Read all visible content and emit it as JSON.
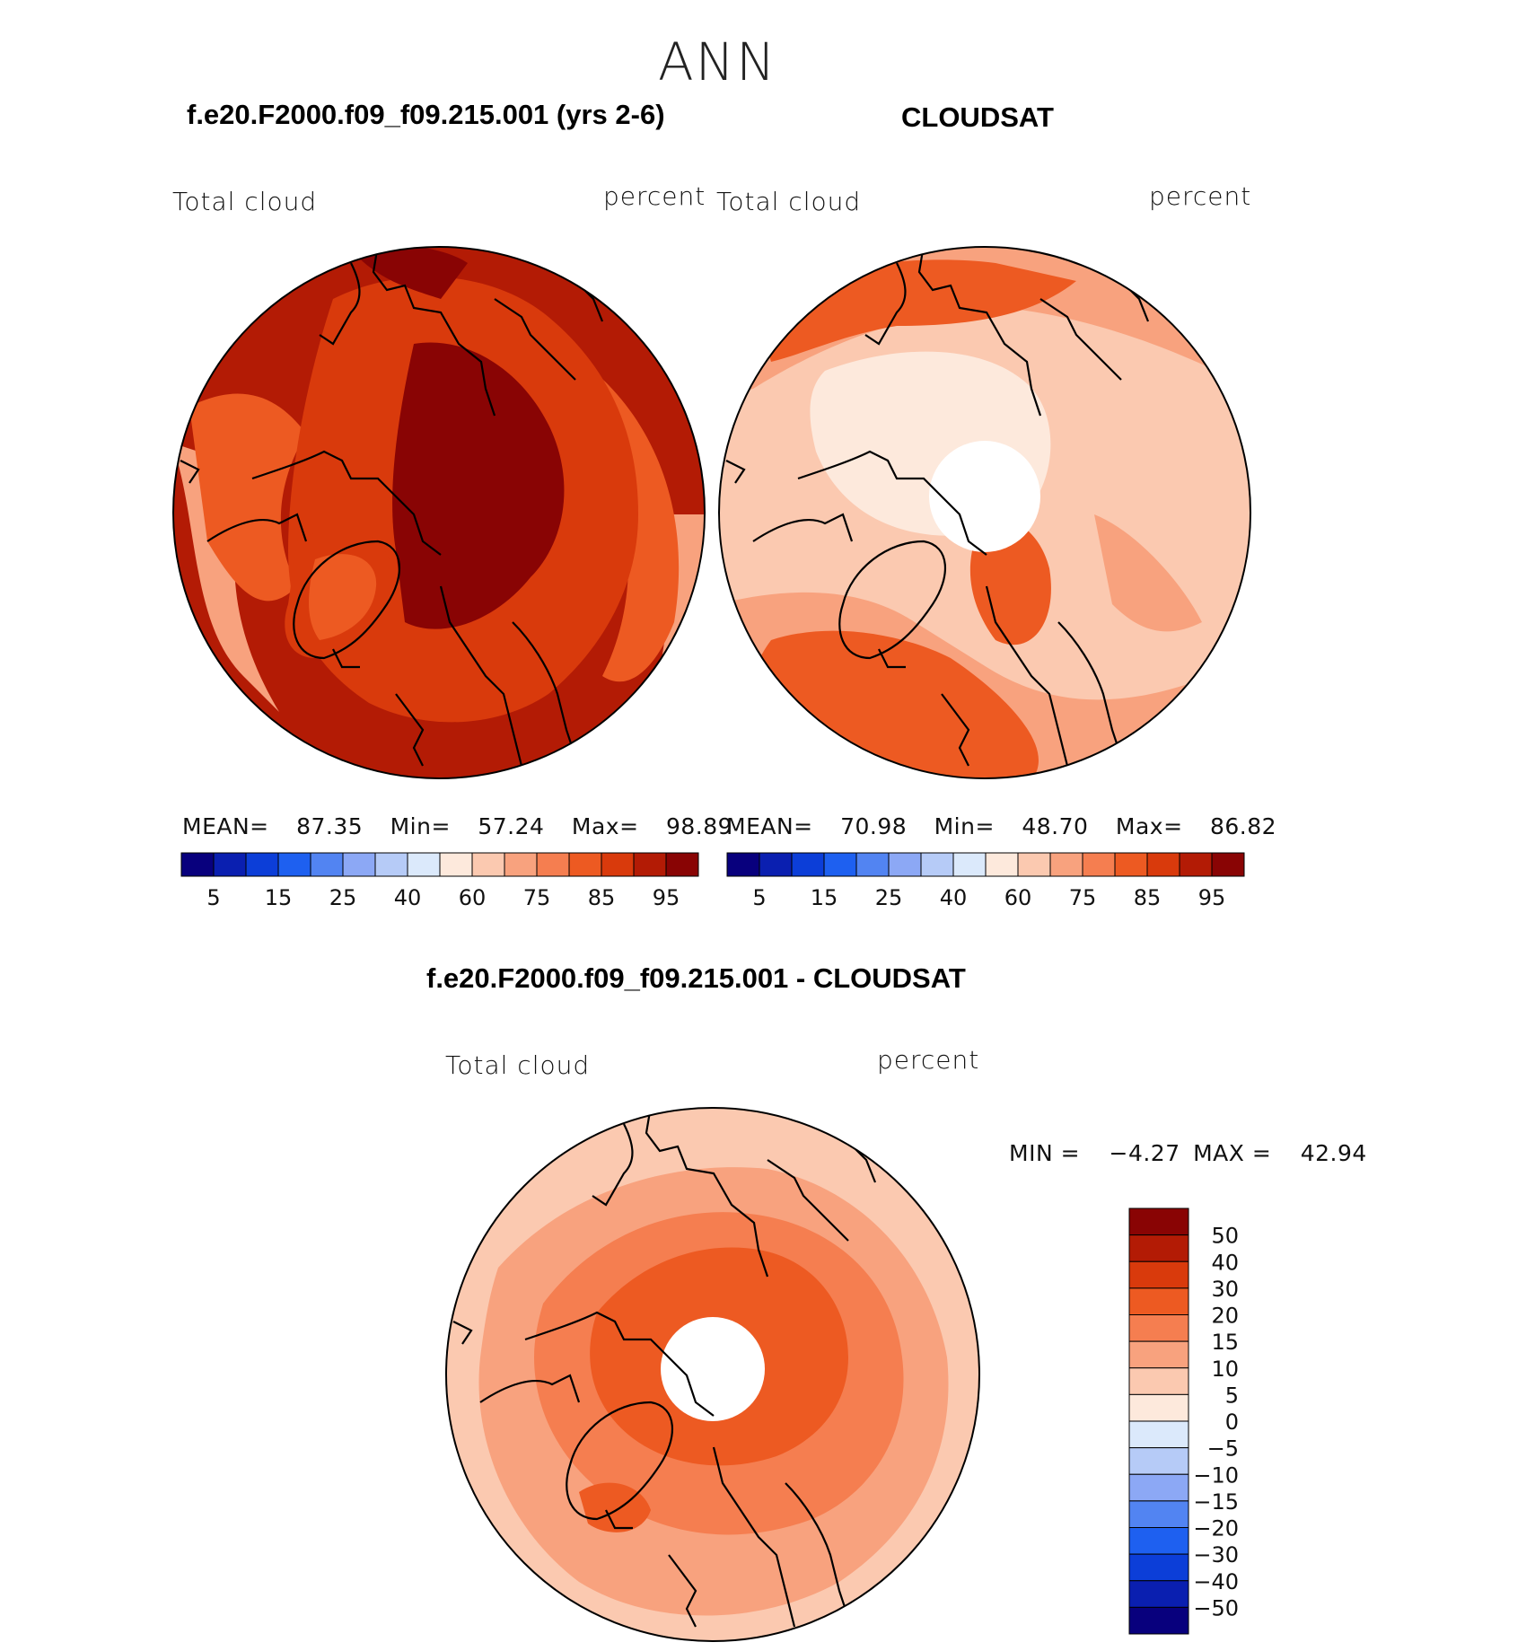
{
  "page": {
    "title": "ANN",
    "panel_left_title": "f.e20.F2000.f09_f09.215.001 (yrs 2-6)",
    "panel_right_title": "CLOUDSAT",
    "panel_diff_title": "f.e20.F2000.f09_f09.215.001 - CLOUDSAT"
  },
  "panels": {
    "left": {
      "variable": "Total cloud",
      "units": "percent",
      "stats": {
        "mean_label": "MEAN=",
        "mean": "87.35",
        "min_label": "Min=",
        "min": "57.24",
        "max_label": "Max=",
        "max": "98.89"
      }
    },
    "right": {
      "variable": "Total cloud",
      "units": "percent",
      "stats": {
        "mean_label": "MEAN=",
        "mean": "70.98",
        "min_label": "Min=",
        "min": "48.70",
        "max_label": "Max=",
        "max": "86.82"
      }
    },
    "diff": {
      "variable": "Total cloud",
      "units": "percent",
      "stats": {
        "min_label": "MIN =",
        "min": "−4.27",
        "max_label": "MAX =",
        "max": "42.94"
      }
    }
  },
  "colorbar_abs": {
    "colors": [
      "#08007d",
      "#0a1fb0",
      "#0c3ed8",
      "#1e60f0",
      "#5284f2",
      "#8ca8f5",
      "#b6cbf7",
      "#dbe9fb",
      "#fde9dc",
      "#fbc9b0",
      "#f8a27e",
      "#f57e50",
      "#ed5a22",
      "#d93a0c",
      "#b31b05",
      "#890404"
    ],
    "tick_labels": [
      "5",
      "15",
      "25",
      "40",
      "60",
      "75",
      "85",
      "95"
    ]
  },
  "colorbar_diff": {
    "colors": [
      "#890404",
      "#b31b05",
      "#d93a0c",
      "#ed5a22",
      "#f57e50",
      "#f8a27e",
      "#fbc9b0",
      "#fde9dc",
      "#dbe9fb",
      "#b6cbf7",
      "#8ca8f5",
      "#5284f2",
      "#1e60f0",
      "#0c3ed8",
      "#0a1fb0",
      "#08007d"
    ],
    "tick_labels": [
      "50",
      "40",
      "30",
      "20",
      "15",
      "10",
      "5",
      "0",
      "−5",
      "−10",
      "−15",
      "−20",
      "−30",
      "−40",
      "−50"
    ]
  },
  "map_colors": {
    "left_fill": "#b31b05",
    "left_dark": "#890404",
    "left_mid": "#d93a0c",
    "left_light": "#ed5a22",
    "left_pale": "#f8a27e",
    "right_fill": "#fbc9b0",
    "right_mid": "#f8a27e",
    "right_orange": "#ed5a22",
    "right_pale": "#fde9dc",
    "diff_fill": "#fbc9b0",
    "diff_mid": "#f8a27e",
    "diff_orange": "#f57e50",
    "diff_dark": "#ed5a22",
    "missing": "#ffffff"
  }
}
